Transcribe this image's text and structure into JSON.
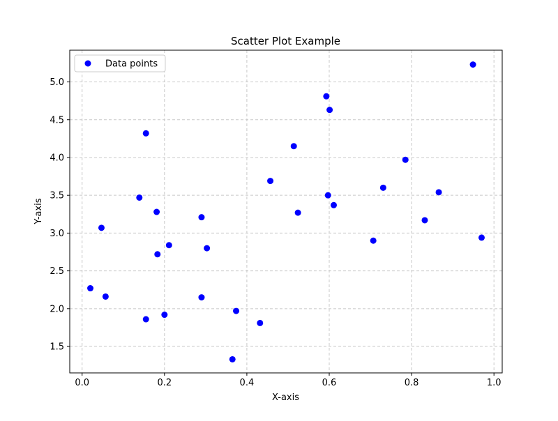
{
  "chart_data": {
    "type": "scatter",
    "title": "Scatter Plot Example",
    "xlabel": "X-axis",
    "ylabel": "Y-axis",
    "xlim": [
      -0.03,
      1.02
    ],
    "ylim": [
      1.15,
      5.42
    ],
    "xticks": [
      0.0,
      0.2,
      0.4,
      0.6,
      0.8,
      1.0
    ],
    "xtick_labels": [
      "0.0",
      "0.2",
      "0.4",
      "0.6",
      "0.8",
      "1.0"
    ],
    "yticks": [
      1.5,
      2.0,
      2.5,
      3.0,
      3.5,
      4.0,
      4.5,
      5.0
    ],
    "ytick_labels": [
      "1.5",
      "2.0",
      "2.5",
      "3.0",
      "3.5",
      "4.0",
      "4.5",
      "5.0"
    ],
    "grid": true,
    "grid_style": "dashed",
    "legend_position": "top-left",
    "series": [
      {
        "name": "Data points",
        "color": "#0000ff",
        "points": [
          {
            "x": 0.02,
            "y": 2.27
          },
          {
            "x": 0.047,
            "y": 3.07
          },
          {
            "x": 0.057,
            "y": 2.16
          },
          {
            "x": 0.139,
            "y": 3.47
          },
          {
            "x": 0.155,
            "y": 4.32
          },
          {
            "x": 0.155,
            "y": 1.86
          },
          {
            "x": 0.181,
            "y": 3.28
          },
          {
            "x": 0.183,
            "y": 2.72
          },
          {
            "x": 0.2,
            "y": 1.92
          },
          {
            "x": 0.211,
            "y": 2.84
          },
          {
            "x": 0.29,
            "y": 3.21
          },
          {
            "x": 0.29,
            "y": 2.15
          },
          {
            "x": 0.303,
            "y": 2.8
          },
          {
            "x": 0.365,
            "y": 1.33
          },
          {
            "x": 0.374,
            "y": 1.97
          },
          {
            "x": 0.432,
            "y": 1.81
          },
          {
            "x": 0.457,
            "y": 3.69
          },
          {
            "x": 0.514,
            "y": 4.15
          },
          {
            "x": 0.524,
            "y": 3.27
          },
          {
            "x": 0.593,
            "y": 4.81
          },
          {
            "x": 0.597,
            "y": 3.5
          },
          {
            "x": 0.601,
            "y": 4.63
          },
          {
            "x": 0.611,
            "y": 3.37
          },
          {
            "x": 0.707,
            "y": 2.9
          },
          {
            "x": 0.731,
            "y": 3.6
          },
          {
            "x": 0.785,
            "y": 3.97
          },
          {
            "x": 0.832,
            "y": 3.17
          },
          {
            "x": 0.866,
            "y": 3.54
          },
          {
            "x": 0.949,
            "y": 5.23
          },
          {
            "x": 0.97,
            "y": 2.94
          }
        ]
      }
    ]
  }
}
